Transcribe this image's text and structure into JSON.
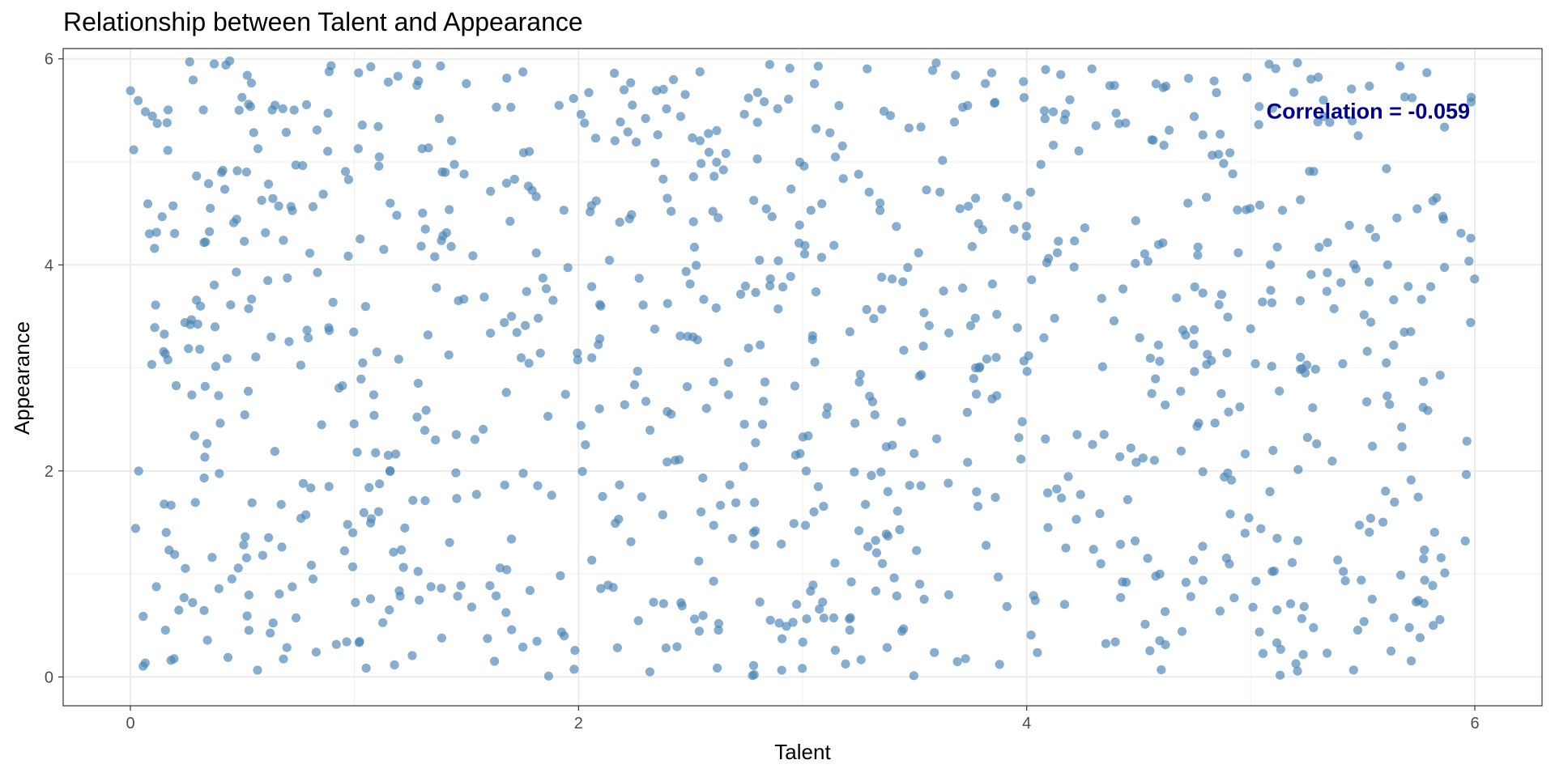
{
  "chart_data": {
    "type": "scatter",
    "title": "Relationship between Talent and Appearance",
    "xlabel": "Talent",
    "ylabel": "Appearance",
    "xlim": [
      -0.3,
      6.3
    ],
    "ylim": [
      -0.28,
      6.1
    ],
    "x_ticks": [
      "0",
      "2",
      "4",
      "6"
    ],
    "y_ticks": [
      "0",
      "2",
      "4",
      "6"
    ],
    "grid": true,
    "legend": "none",
    "annotation": {
      "text": "Correlation = -0.059",
      "x": 5.0,
      "y": 5.5,
      "color": "#00008b"
    },
    "point_color": "#4682b4",
    "point_opacity": 0.65,
    "n_points": 1000,
    "seed": 20240611,
    "points_note_rng": "uniform[0,6]"
  }
}
